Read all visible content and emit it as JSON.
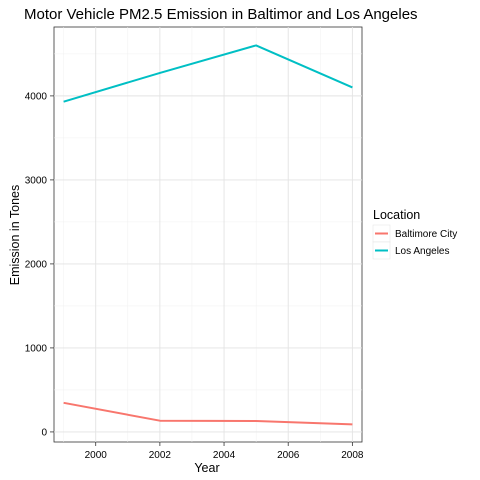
{
  "chart_data": {
    "type": "line",
    "title": "Motor Vehicle PM2.5 Emission in Baltimor and Los Angeles",
    "xlabel": "Year",
    "ylabel": "Emission in Tones",
    "xlim": [
      1998.7,
      2008.3
    ],
    "ylim": [
      -120,
      4820
    ],
    "x_ticks": [
      2000,
      2002,
      2004,
      2006,
      2008
    ],
    "y_ticks": [
      0,
      1000,
      2000,
      3000,
      4000
    ],
    "grid": true,
    "legend": {
      "title": "Location",
      "position": "right"
    },
    "series": [
      {
        "name": "Baltimore City",
        "color": "#F8766D",
        "x": [
          1999,
          2002,
          2005,
          2008
        ],
        "y": [
          347,
          134,
          130,
          89
        ]
      },
      {
        "name": "Los Angeles",
        "color": "#00BFC4",
        "x": [
          1999,
          2002,
          2005,
          2008
        ],
        "y": [
          3931,
          4274,
          4601,
          4101
        ]
      }
    ]
  }
}
